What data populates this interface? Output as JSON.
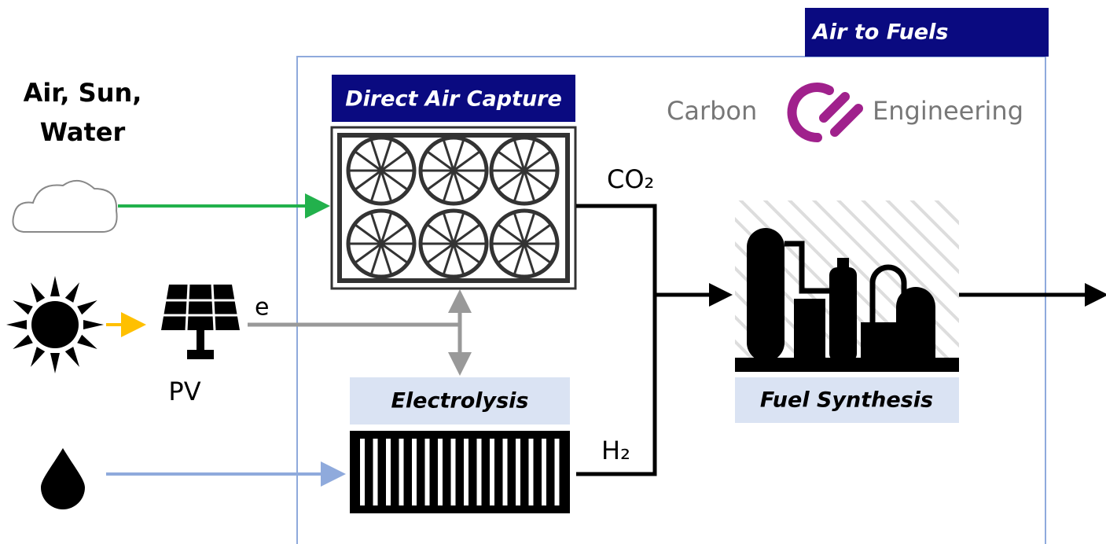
{
  "banner": "Air to Fuels",
  "inputs": {
    "lines": [
      "Air, Sun,",
      "Water"
    ]
  },
  "direct_air_capture": "Direct Air Capture",
  "logo": {
    "left": "Carbon",
    "right": "Engineering"
  },
  "co2": "CO₂",
  "h2": "H₂",
  "electricity": "e",
  "pv": "PV",
  "electrolysis": "Electrolysis",
  "fuel_synthesis": "Fuel Synthesis"
}
